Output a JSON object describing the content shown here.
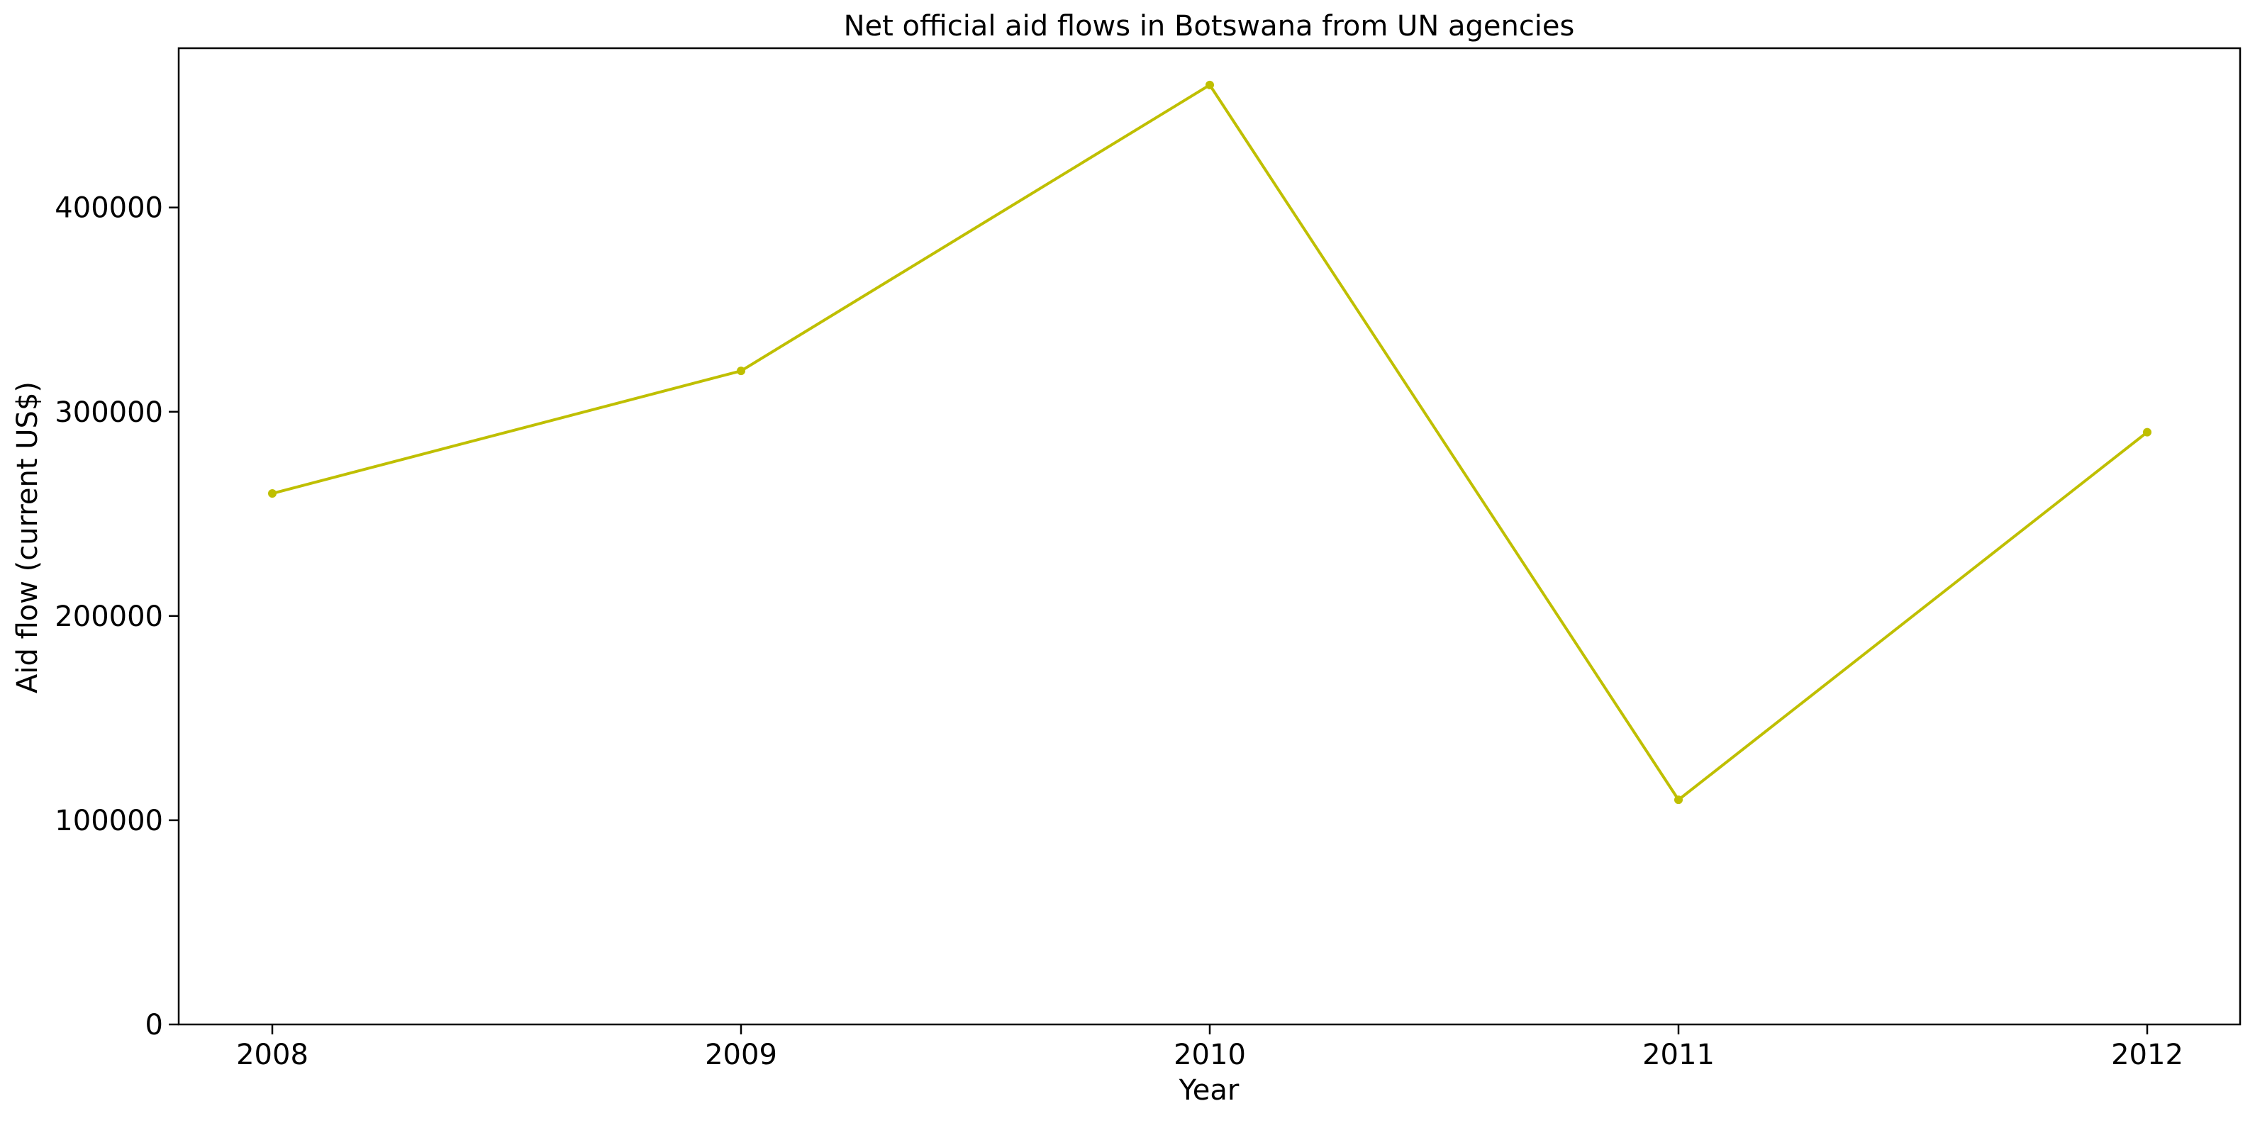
{
  "chart_data": {
    "type": "line",
    "title": "Net official aid flows in Botswana from UN agencies",
    "xlabel": "Year",
    "ylabel": "Aid flow (current US$)",
    "x": [
      "2008",
      "2009",
      "2010",
      "2011",
      "2012"
    ],
    "series": [
      {
        "values": [
          260000,
          320000,
          460000,
          110000,
          290000
        ],
        "color": "#bfbf00"
      }
    ],
    "ylim": [
      0,
      478000
    ],
    "yticks": [
      0,
      100000,
      200000,
      300000,
      400000
    ],
    "ytick_labels": [
      "0",
      "100000",
      "200000",
      "300000",
      "400000"
    ],
    "grid": false,
    "legend": "none"
  }
}
